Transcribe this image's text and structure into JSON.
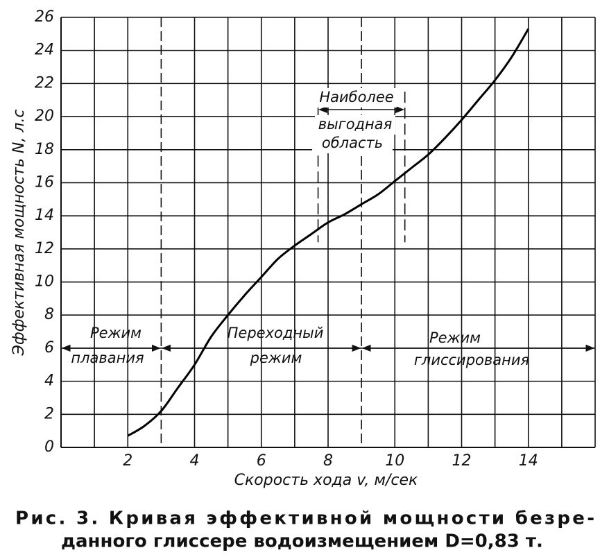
{
  "chart_data": {
    "type": "line",
    "x": [
      2,
      2.5,
      3,
      3.5,
      4,
      4.5,
      5,
      5.5,
      6,
      6.5,
      7,
      7.5,
      8,
      8.5,
      9,
      9.5,
      10,
      10.5,
      11,
      11.5,
      12,
      12.5,
      13,
      13.5,
      14
    ],
    "series": [
      {
        "color": "#000000",
        "values": [
          0.7,
          1.3,
          2.2,
          3.6,
          5,
          6.7,
          8,
          9.2,
          10.3,
          11.4,
          12.2,
          12.9,
          13.6,
          14.1,
          14.7,
          15.3,
          16.1,
          16.9,
          17.7,
          18.7,
          19.8,
          21,
          22.2,
          23.6,
          25.3
        ]
      }
    ],
    "xlim": [
      0,
      16
    ],
    "ylim": [
      0,
      26
    ],
    "xticks": [
      2,
      4,
      6,
      8,
      10,
      12,
      14
    ],
    "x_minor_ticks": [
      1,
      3,
      5,
      7,
      9,
      11,
      13,
      15,
      16
    ],
    "yticks": [
      0,
      2,
      4,
      6,
      8,
      10,
      12,
      14,
      16,
      18,
      20,
      22,
      24,
      26
    ],
    "grid": true,
    "xlabel": "Скорость хода v, м/сек",
    "ylabel": "Эффективная мощность N, л.с",
    "regime_boundaries": [
      3,
      9
    ],
    "regime_arrow_level": 6,
    "regimes": [
      [
        "Режим",
        "плавания"
      ],
      [
        "Переходный",
        "режим"
      ],
      [
        "Режим",
        "глиссирования"
      ]
    ],
    "optimal_range": [
      7.7,
      10.3
    ],
    "optimal_label": [
      "Наиболее",
      "выгодная",
      "область"
    ],
    "caption": [
      "Рис. 3. Кривая эффективной мощности безре-",
      "данного глиссере водоизмещением D=0,83 т."
    ]
  }
}
